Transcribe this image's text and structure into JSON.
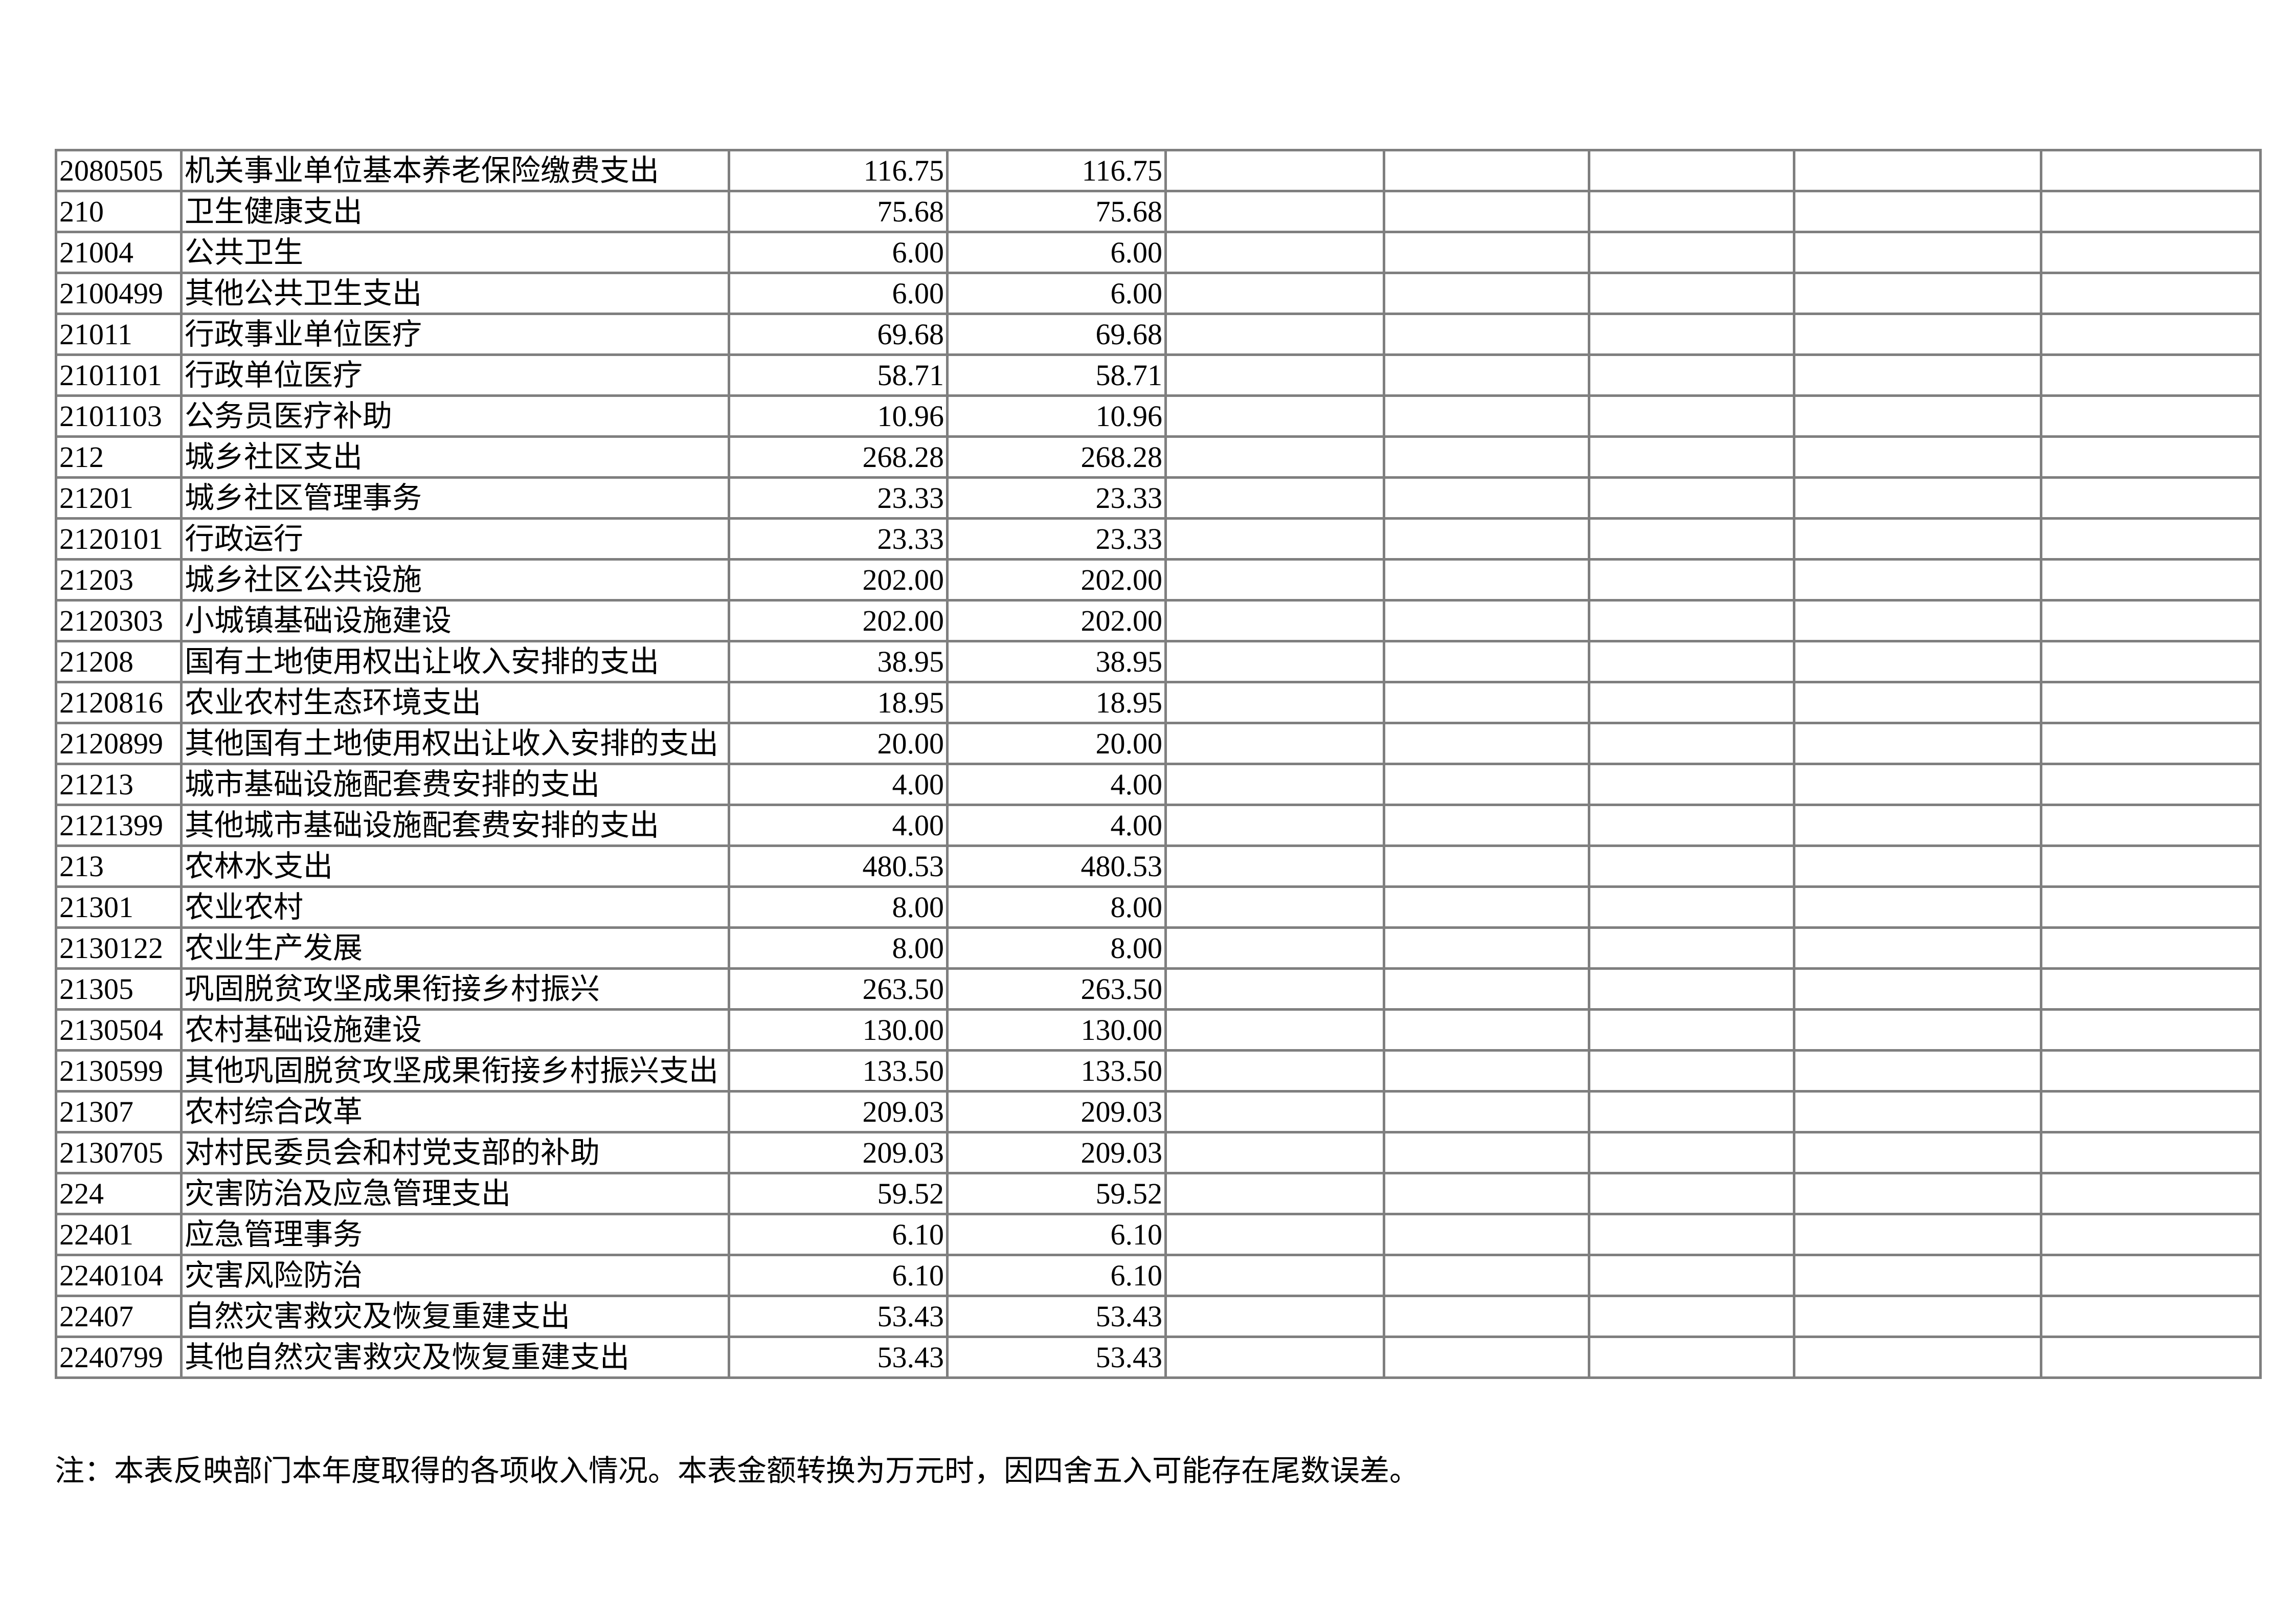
{
  "rows": [
    {
      "code": "2080505",
      "name": "机关事业单位基本养老保险缴费支出",
      "v1": "116.75",
      "v2": "116.75"
    },
    {
      "code": "210",
      "name": "卫生健康支出",
      "v1": "75.68",
      "v2": "75.68"
    },
    {
      "code": "21004",
      "name": "公共卫生",
      "v1": "6.00",
      "v2": "6.00"
    },
    {
      "code": "2100499",
      "name": "其他公共卫生支出",
      "v1": "6.00",
      "v2": "6.00"
    },
    {
      "code": "21011",
      "name": "行政事业单位医疗",
      "v1": "69.68",
      "v2": "69.68"
    },
    {
      "code": "2101101",
      "name": "行政单位医疗",
      "v1": "58.71",
      "v2": "58.71"
    },
    {
      "code": "2101103",
      "name": "公务员医疗补助",
      "v1": "10.96",
      "v2": "10.96"
    },
    {
      "code": "212",
      "name": "城乡社区支出",
      "v1": "268.28",
      "v2": "268.28"
    },
    {
      "code": "21201",
      "name": "城乡社区管理事务",
      "v1": "23.33",
      "v2": "23.33"
    },
    {
      "code": "2120101",
      "name": "行政运行",
      "v1": "23.33",
      "v2": "23.33"
    },
    {
      "code": "21203",
      "name": "城乡社区公共设施",
      "v1": "202.00",
      "v2": "202.00"
    },
    {
      "code": "2120303",
      "name": "小城镇基础设施建设",
      "v1": "202.00",
      "v2": "202.00"
    },
    {
      "code": "21208",
      "name": "国有土地使用权出让收入安排的支出",
      "v1": "38.95",
      "v2": "38.95"
    },
    {
      "code": "2120816",
      "name": "农业农村生态环境支出",
      "v1": "18.95",
      "v2": "18.95"
    },
    {
      "code": "2120899",
      "name": "其他国有土地使用权出让收入安排的支出",
      "v1": "20.00",
      "v2": "20.00"
    },
    {
      "code": "21213",
      "name": "城市基础设施配套费安排的支出",
      "v1": "4.00",
      "v2": "4.00"
    },
    {
      "code": "2121399",
      "name": "其他城市基础设施配套费安排的支出",
      "v1": "4.00",
      "v2": "4.00"
    },
    {
      "code": "213",
      "name": "农林水支出",
      "v1": "480.53",
      "v2": "480.53"
    },
    {
      "code": "21301",
      "name": "农业农村",
      "v1": "8.00",
      "v2": "8.00"
    },
    {
      "code": "2130122",
      "name": "农业生产发展",
      "v1": "8.00",
      "v2": "8.00"
    },
    {
      "code": "21305",
      "name": "巩固脱贫攻坚成果衔接乡村振兴",
      "v1": "263.50",
      "v2": "263.50"
    },
    {
      "code": "2130504",
      "name": "农村基础设施建设",
      "v1": "130.00",
      "v2": "130.00"
    },
    {
      "code": "2130599",
      "name": "其他巩固脱贫攻坚成果衔接乡村振兴支出",
      "v1": "133.50",
      "v2": "133.50"
    },
    {
      "code": "21307",
      "name": "农村综合改革",
      "v1": "209.03",
      "v2": "209.03"
    },
    {
      "code": "2130705",
      "name": "对村民委员会和村党支部的补助",
      "v1": "209.03",
      "v2": "209.03"
    },
    {
      "code": "224",
      "name": "灾害防治及应急管理支出",
      "v1": "59.52",
      "v2": "59.52"
    },
    {
      "code": "22401",
      "name": "应急管理事务",
      "v1": "6.10",
      "v2": "6.10"
    },
    {
      "code": "2240104",
      "name": "灾害风险防治",
      "v1": "6.10",
      "v2": "6.10"
    },
    {
      "code": "22407",
      "name": "自然灾害救灾及恢复重建支出",
      "v1": "53.43",
      "v2": "53.43"
    },
    {
      "code": "2240799",
      "name": "其他自然灾害救灾及恢复重建支出",
      "v1": "53.43",
      "v2": "53.43"
    }
  ],
  "note": "注：本表反映部门本年度取得的各项收入情况。本表金额转换为万元时，因四舍五入可能存在尾数误差。"
}
